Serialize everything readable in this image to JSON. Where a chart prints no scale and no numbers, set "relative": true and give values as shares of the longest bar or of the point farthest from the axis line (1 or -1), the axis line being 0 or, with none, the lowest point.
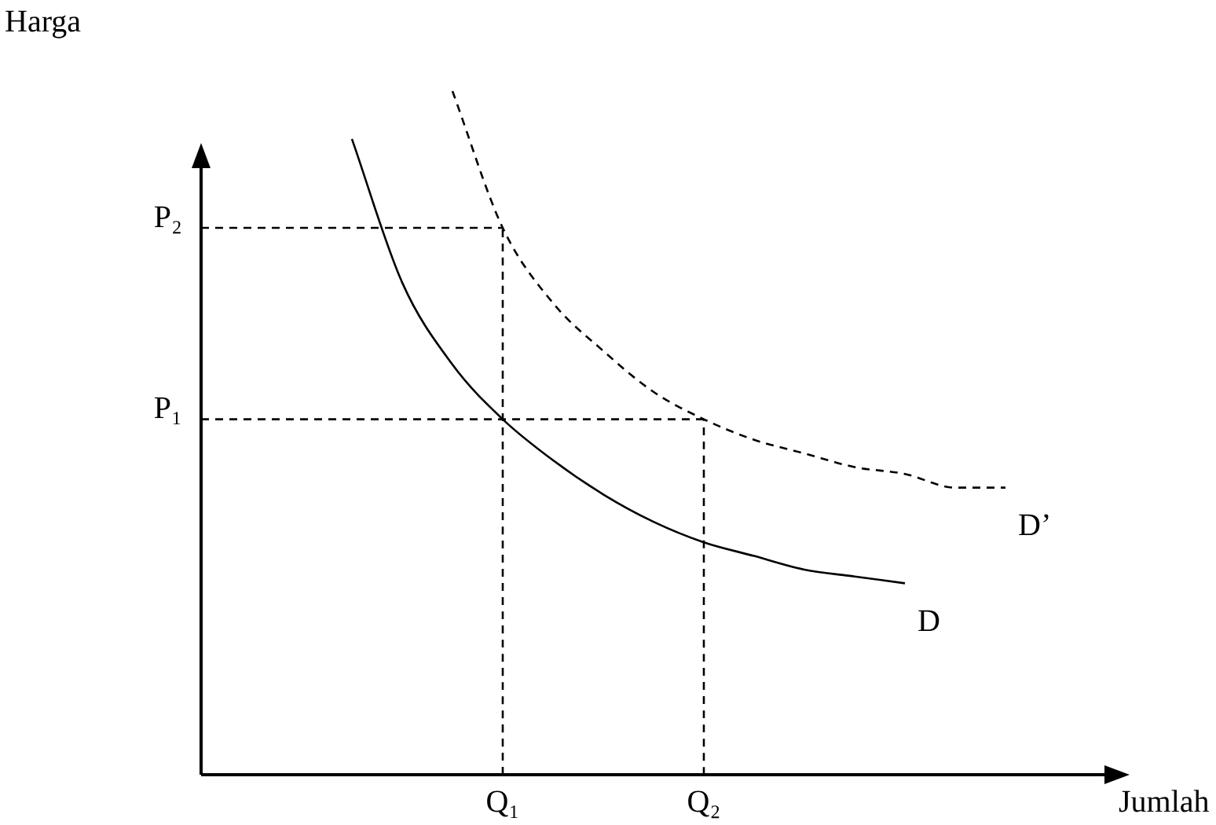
{
  "chart_data": {
    "type": "line",
    "relative": true,
    "xlabel": "Jumlah",
    "ylabel": "Harga",
    "categories": [
      null,
      null,
      null,
      null,
      null,
      null,
      "Q₁",
      null,
      null,
      null,
      "Q₂",
      null,
      null,
      null,
      null,
      null,
      null
    ],
    "series": [
      {
        "name": "D",
        "color": "#000000",
        "line_style": "solid",
        "values": [
          null,
          null,
          null,
          0.93,
          0.72,
          0.6,
          0.52,
          0.46,
          0.41,
          0.37,
          0.34,
          0.32,
          0.3,
          0.29,
          0.28,
          null,
          null
        ]
      },
      {
        "name": "D’",
        "color": "#000000",
        "line_style": "dashed",
        "values": [
          null,
          null,
          null,
          null,
          null,
          1.0,
          0.8,
          0.69,
          0.62,
          0.56,
          0.52,
          0.49,
          0.47,
          0.45,
          0.44,
          0.42,
          0.42
        ]
      },
      {
        "name": "P₂",
        "color": "#000000",
        "line_style": "dashed",
        "values": [
          0.8,
          0.8,
          0.8,
          0.8,
          0.8,
          0.8,
          0.8,
          null,
          null,
          null,
          null,
          null,
          null,
          null,
          null,
          null,
          null
        ]
      },
      {
        "name": "P₁",
        "color": "#000000",
        "line_style": "dashed",
        "values": [
          0.52,
          0.52,
          0.52,
          0.52,
          0.52,
          0.52,
          0.52,
          0.52,
          0.52,
          0.52,
          0.52,
          null,
          null,
          null,
          null,
          null,
          null
        ]
      },
      {
        "color": "#000000",
        "line_style": "dashed",
        "x": [
          "Q₁",
          "Q₁"
        ],
        "values": [
          0,
          0.8
        ]
      },
      {
        "color": "#000000",
        "line_style": "dashed",
        "x": [
          "Q₂",
          "Q₂"
        ],
        "values": [
          0,
          0.52
        ]
      }
    ]
  }
}
